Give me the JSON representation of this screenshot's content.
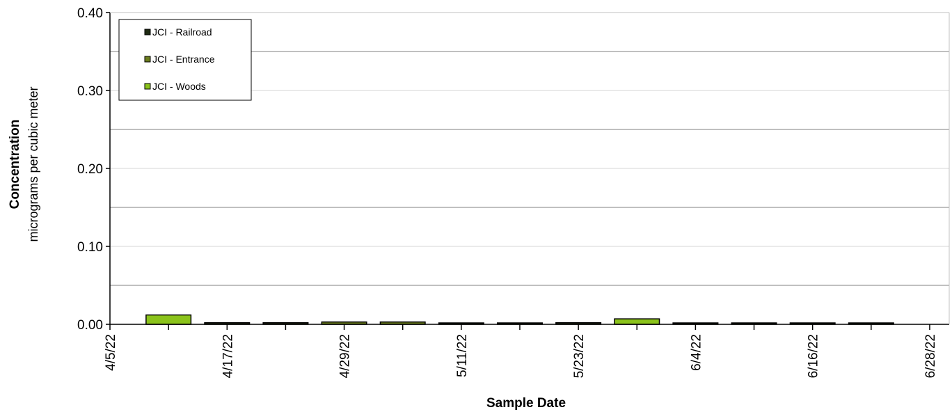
{
  "chart_data": {
    "type": "bar",
    "xlabel": "Sample Date",
    "ylabel": "Concentration",
    "ylabel_sub": "micrograms per cubic meter",
    "ylim": [
      0,
      0.4
    ],
    "yticks": [
      "0.00",
      "0.10",
      "0.20",
      "0.30",
      "0.40"
    ],
    "xlim": [
      "4/5/22",
      "6/30/22"
    ],
    "xticks": [
      "4/5/22",
      "4/17/22",
      "4/29/22",
      "5/11/22",
      "5/23/22",
      "6/4/22",
      "6/16/22",
      "6/28/22"
    ],
    "grid": true,
    "legend_position": "top-left",
    "series": [
      {
        "name": "JCI - Railroad",
        "color": "#1f2a12",
        "points": [
          {
            "x": "4/17/22",
            "y": 0.002
          },
          {
            "x": "4/23/22",
            "y": 0.002
          },
          {
            "x": "5/11/22",
            "y": 0.001
          },
          {
            "x": "5/17/22",
            "y": 0.001
          },
          {
            "x": "5/23/22",
            "y": 0.002
          },
          {
            "x": "6/4/22",
            "y": 0.001
          },
          {
            "x": "6/10/22",
            "y": 0.001
          },
          {
            "x": "6/16/22",
            "y": 0.001
          },
          {
            "x": "6/22/22",
            "y": 0.001
          }
        ]
      },
      {
        "name": "JCI - Entrance",
        "color": "#6b7d1d",
        "points": [
          {
            "x": "4/29/22",
            "y": 0.003
          },
          {
            "x": "5/5/22",
            "y": 0.003
          }
        ]
      },
      {
        "name": "JCI - Woods",
        "color": "#8bc31b",
        "points": [
          {
            "x": "4/11/22",
            "y": 0.012
          },
          {
            "x": "5/29/22",
            "y": 0.007
          }
        ]
      }
    ]
  }
}
